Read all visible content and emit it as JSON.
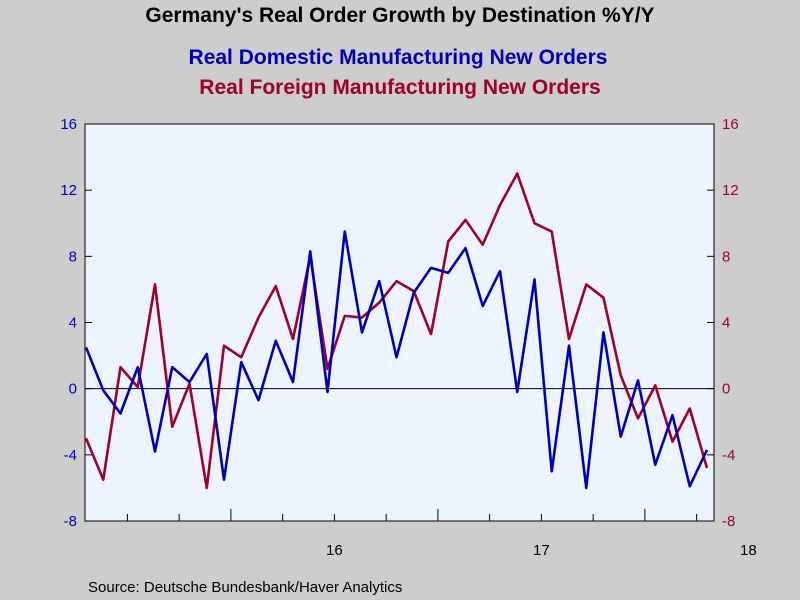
{
  "chart_data": {
    "type": "line",
    "title": "Germany's Real Order Growth by Destination %Y/Y",
    "source": "Source:  Deutsche Bundesbank/Haver Analytics",
    "x_tick_labels": [
      "16",
      "17",
      "18"
    ],
    "y_ticks": [
      -8,
      -4,
      0,
      4,
      8,
      12,
      16
    ],
    "ylim": [
      -8,
      16
    ],
    "zero_line": true,
    "grid": false,
    "colors": {
      "domestic": "#0000b4",
      "foreign": "#a0002a",
      "plot_bg": "#eef4ff",
      "page_bg": "#cdcdcd"
    },
    "series": [
      {
        "name": "Real Domestic Manufacturing New Orders",
        "color": "#0000b4",
        "axis": "left",
        "values": [
          2.5,
          -0.1,
          -1.5,
          1.3,
          -3.8,
          1.3,
          0.4,
          2.1,
          -5.5,
          1.6,
          -0.7,
          2.9,
          0.4,
          8.3,
          -0.2,
          9.5,
          3.4,
          6.5,
          1.9,
          5.8,
          7.3,
          7.0,
          8.5,
          5.0,
          7.1,
          -0.2,
          6.6,
          -5.0,
          2.6,
          -6.0,
          3.4,
          -2.9,
          0.5,
          -4.6,
          -1.6,
          -5.9,
          -3.7
        ]
      },
      {
        "name": "Real Foreign Manufacturing New Orders",
        "color": "#a0002a",
        "axis": "right",
        "values": [
          -3.0,
          -5.5,
          1.3,
          0.1,
          6.3,
          -2.3,
          0.3,
          -6.0,
          2.6,
          1.9,
          4.3,
          6.2,
          3.0,
          8.0,
          1.2,
          4.4,
          4.3,
          5.2,
          6.5,
          5.9,
          3.3,
          8.9,
          10.2,
          8.7,
          11.1,
          13.0,
          10.0,
          9.5,
          3.0,
          6.3,
          5.5,
          0.8,
          -1.8,
          0.2,
          -3.2,
          -1.2,
          -4.8
        ]
      }
    ]
  }
}
